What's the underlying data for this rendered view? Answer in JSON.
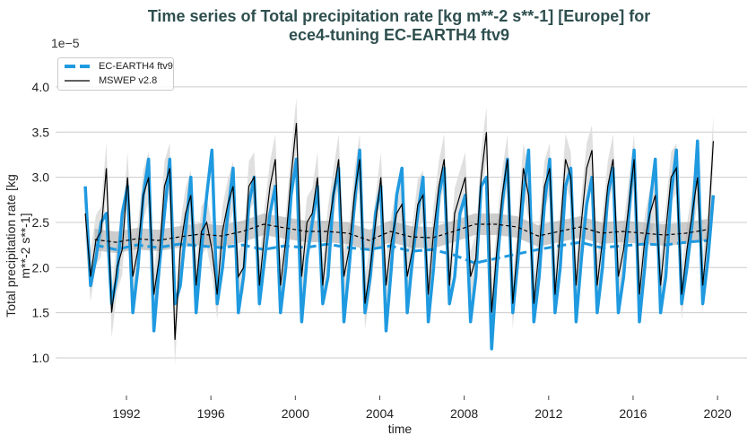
{
  "title": "Time series of Total precipitation rate [kg m**-2 s**-1] [Europe] for ece4-tuning EC-EARTH4 ftv9",
  "chart_data": {
    "type": "line",
    "title": "Time series of Total precipitation rate [kg m**-2 s**-1] [Europe] for ece4-tuning EC-EARTH4 ftv9",
    "xlabel": "time",
    "ylabel": "Total precipitation rate [kg m**-2 s**-1]",
    "y_offset_label": "1e−5",
    "xlim": [
      1989.5,
      2021.5
    ],
    "ylim": [
      0.7,
      4.3
    ],
    "x_ticks": [
      "1992",
      "1996",
      "2000",
      "2004",
      "2008",
      "2012",
      "2016",
      "2020"
    ],
    "y_ticks": [
      "1.0",
      "1.5",
      "2.0",
      "2.5",
      "3.0",
      "3.5",
      "4.0"
    ],
    "grid": "horizontal",
    "legend_position": "top-left",
    "x_start": 1990,
    "samples_per_year": 4,
    "series": [
      {
        "name": "EC-EARTH4 ftv9",
        "color": "#1f9ae0",
        "values": [
          2.9,
          1.8,
          2.1,
          2.5,
          2.6,
          1.6,
          1.9,
          2.6,
          2.9,
          1.5,
          2.0,
          2.8,
          3.2,
          1.3,
          2.0,
          2.6,
          3.2,
          1.6,
          1.8,
          2.4,
          3.0,
          1.5,
          2.2,
          2.8,
          3.3,
          1.6,
          2.0,
          2.6,
          3.1,
          1.5,
          1.9,
          2.7,
          3.0,
          1.6,
          2.1,
          2.6,
          2.9,
          1.5,
          2.0,
          2.8,
          3.2,
          1.4,
          2.1,
          2.5,
          2.9,
          1.6,
          1.9,
          2.8,
          3.1,
          1.4,
          2.0,
          2.7,
          3.3,
          1.5,
          1.9,
          2.6,
          2.9,
          1.3,
          2.0,
          2.8,
          3.1,
          1.5,
          2.1,
          2.6,
          3.0,
          1.4,
          2.0,
          2.8,
          3.1,
          1.6,
          1.9,
          2.6,
          2.8,
          1.4,
          1.9,
          2.9,
          3.0,
          1.1,
          2.0,
          2.7,
          3.2,
          1.5,
          2.1,
          2.8,
          3.3,
          1.4,
          1.9,
          2.7,
          3.2,
          1.5,
          2.0,
          2.9,
          3.1,
          1.4,
          2.1,
          2.7,
          3.0,
          1.5,
          2.0,
          2.8,
          3.1,
          1.5,
          1.9,
          2.6,
          3.3,
          1.4,
          2.0,
          2.7,
          3.2,
          1.5,
          1.9,
          2.8,
          3.3,
          1.6,
          2.0,
          2.5,
          3.4,
          1.6,
          2.1,
          2.8
        ],
        "annual_mean": [
          2.25,
          2.2,
          2.25,
          2.22,
          2.26,
          2.24,
          2.22,
          2.25,
          2.2,
          2.24,
          2.22,
          2.26,
          2.22,
          2.2,
          2.24,
          2.18,
          2.2,
          2.14,
          2.05,
          2.1,
          2.15,
          2.2,
          2.24,
          2.28,
          2.22,
          2.24,
          2.26,
          2.25,
          2.28,
          2.3
        ]
      },
      {
        "name": "MSWEP v2.8",
        "color": "#000000",
        "values": [
          2.6,
          1.9,
          2.3,
          2.4,
          3.1,
          1.5,
          2.0,
          2.2,
          3.0,
          1.9,
          2.2,
          2.8,
          3.0,
          1.7,
          2.1,
          2.9,
          3.1,
          1.2,
          2.2,
          2.6,
          2.8,
          1.8,
          2.4,
          2.5,
          2.2,
          1.7,
          2.4,
          2.7,
          2.9,
          1.9,
          2.0,
          2.9,
          3.0,
          1.8,
          2.4,
          2.9,
          3.2,
          1.8,
          2.3,
          3.0,
          3.6,
          1.9,
          2.5,
          2.6,
          3.0,
          1.8,
          2.4,
          2.8,
          3.2,
          1.9,
          2.2,
          2.8,
          3.2,
          1.6,
          2.0,
          2.5,
          3.0,
          1.8,
          2.3,
          2.6,
          2.7,
          1.9,
          2.2,
          2.7,
          2.8,
          1.7,
          2.4,
          2.9,
          3.2,
          1.8,
          2.6,
          2.8,
          3.0,
          1.9,
          2.1,
          3.0,
          3.5,
          1.5,
          2.2,
          2.8,
          3.2,
          1.6,
          2.3,
          3.1,
          2.8,
          1.6,
          2.2,
          2.9,
          3.1,
          1.7,
          2.4,
          3.2,
          3.0,
          1.8,
          2.5,
          3.1,
          3.3,
          1.8,
          2.3,
          2.9,
          3.2,
          1.9,
          2.2,
          2.7,
          3.2,
          1.7,
          2.3,
          2.6,
          2.8,
          1.8,
          2.4,
          3.0,
          3.1,
          1.7,
          2.2,
          2.6,
          3.0,
          1.8,
          2.4,
          3.4
        ],
        "annual_mean": [
          2.31,
          2.28,
          2.32,
          2.3,
          2.34,
          2.37,
          2.35,
          2.4,
          2.48,
          2.44,
          2.4,
          2.4,
          2.38,
          2.3,
          2.4,
          2.34,
          2.33,
          2.4,
          2.48,
          2.48,
          2.45,
          2.35,
          2.4,
          2.45,
          2.38,
          2.4,
          2.38,
          2.36,
          2.38,
          2.42
        ]
      }
    ]
  }
}
